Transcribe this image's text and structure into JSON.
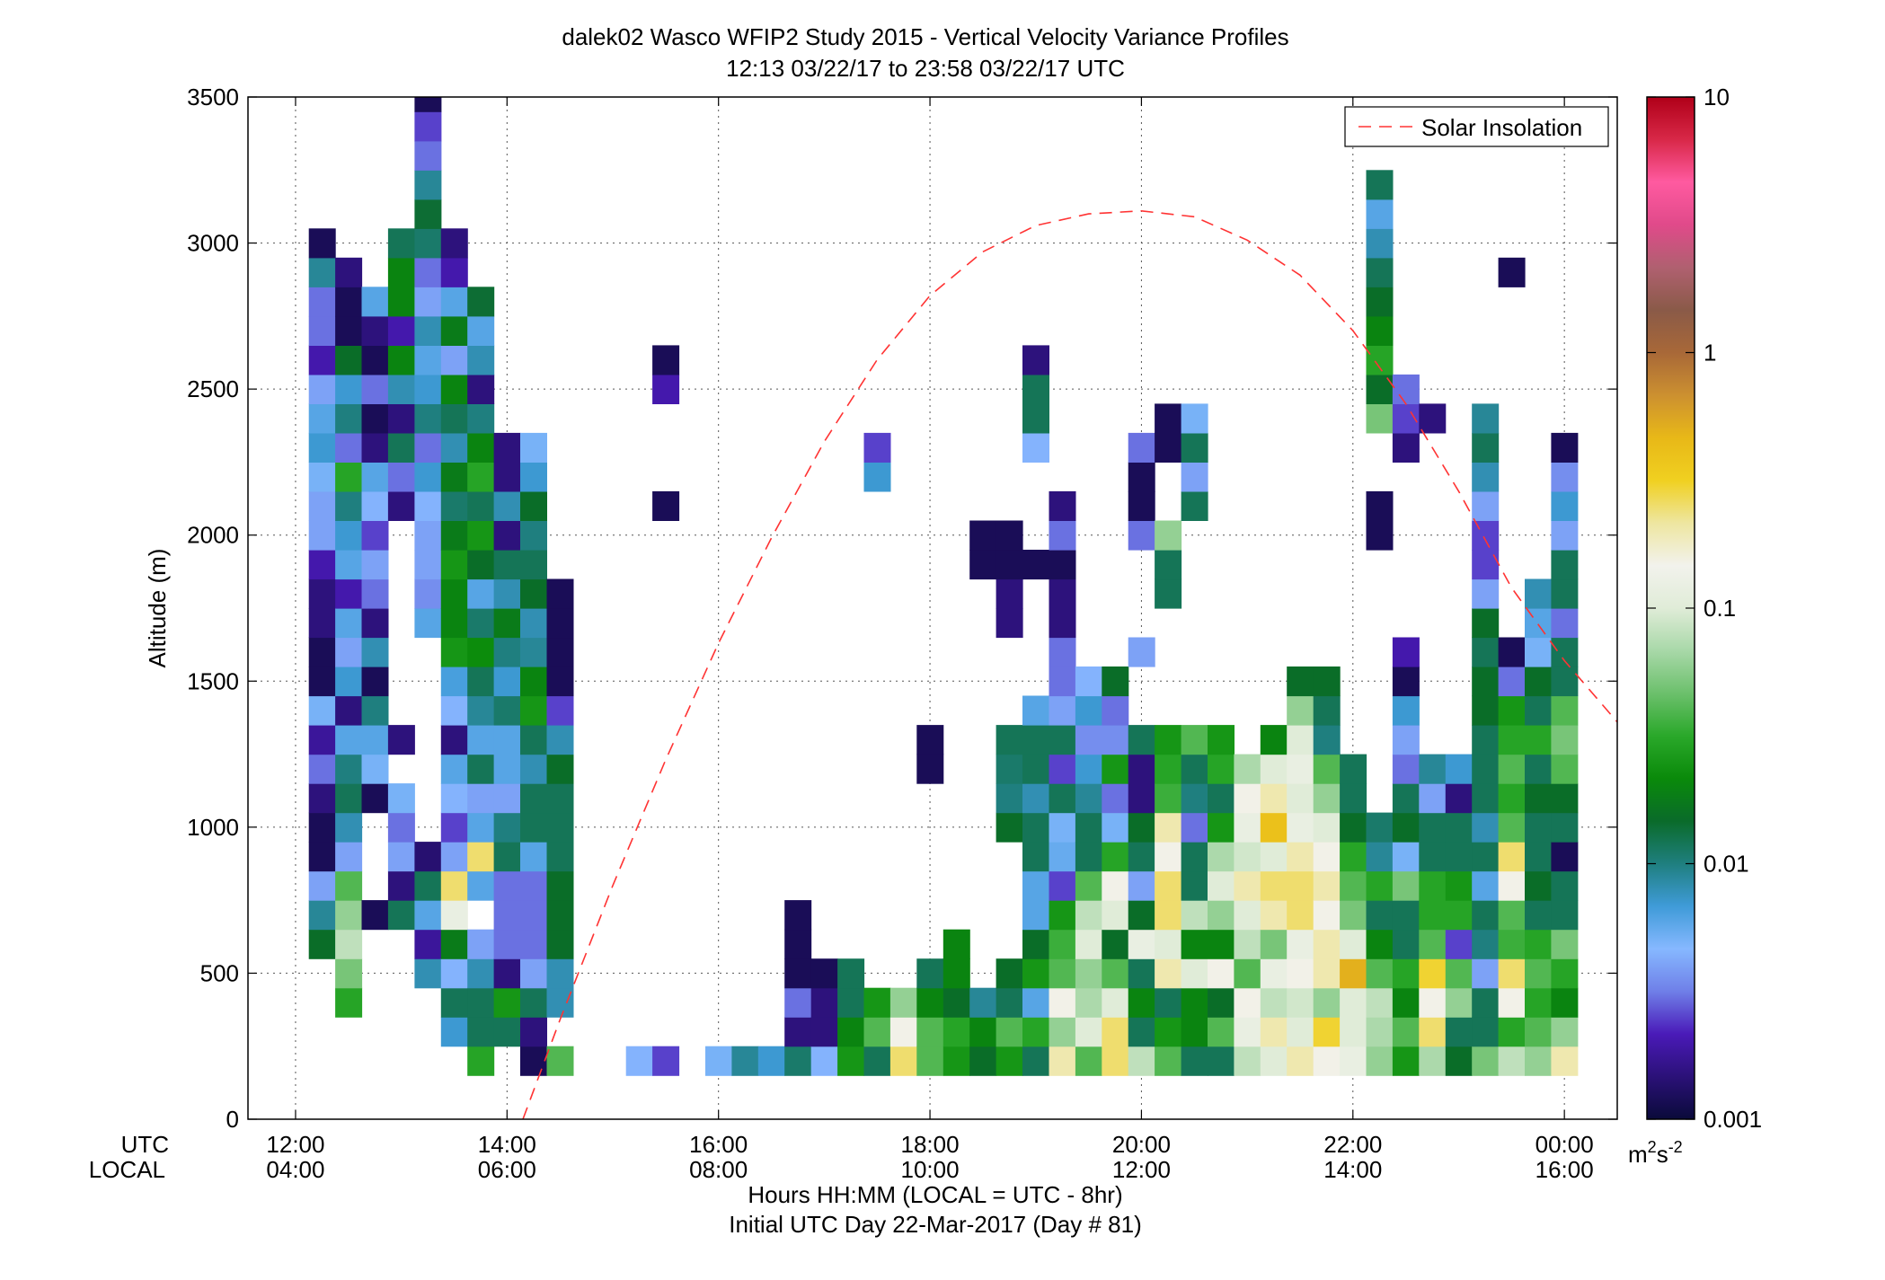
{
  "chart_data": {
    "type": "heatmap",
    "title": "dalek02 Wasco WFIP2 Study 2015 - Vertical Velocity Variance Profiles",
    "subtitle": "12:13 03/22/17 to 23:58 03/22/17  UTC",
    "ylabel": "Altitude (m)",
    "xlabel_lines": [
      "Hours HH:MM  (LOCAL = UTC - 8hr)",
      "Initial UTC Day 22-Mar-2017 (Day # 81)"
    ],
    "x_row_labels": [
      "UTC",
      "LOCAL"
    ],
    "x_ticks": [
      {
        "hour": 12,
        "utc": "12:00",
        "local": "04:00"
      },
      {
        "hour": 14,
        "utc": "14:00",
        "local": "06:00"
      },
      {
        "hour": 16,
        "utc": "16:00",
        "local": "08:00"
      },
      {
        "hour": 18,
        "utc": "18:00",
        "local": "10:00"
      },
      {
        "hour": 20,
        "utc": "20:00",
        "local": "12:00"
      },
      {
        "hour": 22,
        "utc": "22:00",
        "local": "14:00"
      },
      {
        "hour": 24,
        "utc": "00:00",
        "local": "16:00"
      }
    ],
    "y_ticks": [
      0,
      500,
      1000,
      1500,
      2000,
      2500,
      3000,
      3500
    ],
    "xlim_hours": [
      11.55,
      24.5
    ],
    "ylim": [
      0,
      3500
    ],
    "grid": true,
    "legend": {
      "label": "Solar Insolation",
      "position": "top-right",
      "line_color": "#ff3333",
      "line_style": "dashed"
    },
    "solar_insolation": {
      "hours": [
        14.15,
        14.5,
        15.0,
        15.5,
        16.0,
        16.5,
        17.0,
        17.5,
        18.0,
        18.5,
        19.0,
        19.5,
        20.0,
        20.5,
        21.0,
        21.5,
        22.0,
        22.5,
        23.0,
        23.5,
        24.0,
        24.5
      ],
      "altitude": [
        0,
        340,
        800,
        1230,
        1630,
        1990,
        2320,
        2600,
        2820,
        2970,
        3060,
        3100,
        3110,
        3090,
        3010,
        2890,
        2700,
        2450,
        2150,
        1820,
        1570,
        1360
      ]
    },
    "colorbar": {
      "unit": "m^2s^-2",
      "scale": "log",
      "range": [
        0.001,
        10
      ],
      "ticks": [
        {
          "value": 10,
          "label": "10"
        },
        {
          "value": 1,
          "label": "1"
        },
        {
          "value": 0.1,
          "label": "0.1"
        },
        {
          "value": 0.01,
          "label": "0.01"
        },
        {
          "value": 0.001,
          "label": "0.001"
        }
      ],
      "stops": [
        "#0a0a3a",
        "#2b1178",
        "#4a1ab8",
        "#6f7fe8",
        "#86b8ff",
        "#3f9bd8",
        "#1f7f7f",
        "#0a6b2a",
        "#0a8a0a",
        "#2aa82a",
        "#6cc06c",
        "#a8d8a8",
        "#e0ecd8",
        "#f2f2ec",
        "#eee6a0",
        "#f0d020",
        "#e8b818",
        "#cc9030",
        "#a86838",
        "#8a5a48",
        "#b06070",
        "#e04a8a",
        "#ff5aa0",
        "#d82848",
        "#b00018"
      ]
    },
    "cell_size": {
      "hours": 0.25,
      "meters": 100
    },
    "columns": [
      {
        "t": 12.25,
        "z0": 600,
        "v": [
          0.015,
          0.009,
          0.004,
          0.0012,
          0.0012,
          0.0015,
          0.003,
          0.0018,
          0.005,
          0.0012,
          0.0012,
          0.0015,
          0.0015,
          0.002,
          0.004,
          0.004,
          0.005,
          0.007,
          0.006,
          0.004,
          0.002,
          0.003,
          0.003,
          0.009,
          0.0012
        ]
      },
      {
        "t": 12.5,
        "z0": 400,
        "v": [
          0.03,
          0.05,
          0.08,
          0.06,
          0.04,
          0.004,
          0.008,
          0.012,
          0.01,
          0.006,
          0.0015,
          0.007,
          0.004,
          0.006,
          0.002,
          0.006,
          0.007,
          0.01,
          0.03,
          0.003,
          0.01,
          0.007,
          0.015,
          0.0012,
          0.0012,
          0.0015
        ]
      },
      {
        "t": 12.75,
        "z0": 700,
        "v": [
          0.0012,
          null,
          null,
          null,
          0.0012,
          0.005,
          0.006,
          0.01,
          0.0012,
          0.008,
          0.0015,
          0.003,
          0.004,
          0.0025,
          0.0045,
          0.006,
          0.0015,
          0.0012,
          0.003,
          0.0012,
          0.0015,
          0.006
        ]
      },
      {
        "t": 13.0,
        "z0": 700,
        "v": [
          0.012,
          0.0015,
          0.004,
          0.003,
          0.005,
          null,
          0.0015,
          null,
          null,
          null,
          null,
          null,
          null,
          null,
          0.0015,
          0.003,
          0.012,
          0.0015,
          0.008,
          0.02,
          0.002,
          0.02,
          0.02,
          0.012
        ]
      },
      {
        "t": 13.25,
        "z0": 500,
        "v": [
          0.008,
          0.0018,
          0.006,
          0.012,
          0.0014,
          null,
          null,
          null,
          null,
          null,
          null,
          null,
          0.006,
          0.0035,
          0.004,
          0.004,
          0.0045,
          0.007,
          0.003,
          0.01,
          0.007,
          0.006,
          0.008,
          0.004,
          0.003,
          0.011,
          0.014,
          0.009,
          0.003,
          0.0025,
          0.0012
        ]
      },
      {
        "t": 13.5,
        "z0": 300,
        "v": [
          0.007,
          0.012,
          0.0045,
          0.018,
          0.12,
          0.25,
          0.004,
          0.0025,
          0.0045,
          0.006,
          0.0015,
          0.0045,
          0.0065,
          0.025,
          0.02,
          0.02,
          0.025,
          0.018,
          0.011,
          0.018,
          0.008,
          0.012,
          0.02,
          0.004,
          0.018,
          0.006,
          0.002,
          0.0015
        ]
      },
      {
        "t": 13.75,
        "z0": 200,
        "v": [
          0.03,
          0.012,
          0.012,
          0.008,
          0.004,
          null,
          0.006,
          0.25,
          0.006,
          0.004,
          0.012,
          0.006,
          0.009,
          0.012,
          0.022,
          0.011,
          0.006,
          0.015,
          0.025,
          0.012,
          0.03,
          0.02,
          0.01,
          0.0015,
          0.008,
          0.006,
          0.014
        ]
      },
      {
        "t": 14.0,
        "z0": 300,
        "v": [
          0.012,
          0.025,
          0.0015,
          0.003,
          0.003,
          0.003,
          0.012,
          0.01,
          0.004,
          0.006,
          0.006,
          0.011,
          0.007,
          0.01,
          0.018,
          0.008,
          0.012,
          0.0015,
          0.008,
          0.0015,
          0.0015
        ]
      },
      {
        "t": 14.25,
        "z0": 200,
        "v": [
          0.0012,
          0.0015,
          0.012,
          0.004,
          0.003,
          0.003,
          0.003,
          0.006,
          0.012,
          0.012,
          0.008,
          0.012,
          0.025,
          0.02,
          0.009,
          0.008,
          0.015,
          0.012,
          0.01,
          0.015,
          0.007,
          0.005
        ]
      },
      {
        "t": 14.5,
        "z0": 200,
        "v": [
          0.04,
          null,
          0.008,
          0.008,
          0.015,
          0.015,
          0.015,
          0.012,
          0.012,
          0.012,
          0.015,
          0.008,
          0.0025,
          0.0012,
          0.0012,
          0.0012,
          0.0012
        ]
      },
      {
        "t": 15.25,
        "z0": 200,
        "v": [
          0.0045
        ]
      },
      {
        "t": 15.5,
        "z0": 200,
        "v": [
          0.0025,
          null,
          null,
          null,
          null,
          null,
          null,
          null,
          null,
          null,
          null,
          null,
          null,
          null,
          null,
          null,
          null,
          null,
          null,
          0.0012,
          null,
          null,
          null,
          0.002,
          0.0012
        ]
      },
      {
        "t": 16.0,
        "z0": 200,
        "v": [
          0.005
        ]
      },
      {
        "t": 16.25,
        "z0": 200,
        "v": [
          0.009
        ]
      },
      {
        "t": 16.5,
        "z0": 200,
        "v": [
          0.007
        ]
      },
      {
        "t": 16.75,
        "z0": 200,
        "v": [
          0.011,
          0.0015,
          0.003,
          0.0012,
          0.0012,
          0.0012
        ]
      },
      {
        "t": 17.0,
        "z0": 200,
        "v": [
          0.0045,
          0.0015,
          0.0015,
          0.0012
        ]
      },
      {
        "t": 17.25,
        "z0": 200,
        "v": [
          0.025,
          0.02,
          0.012,
          0.012
        ]
      },
      {
        "t": 17.5,
        "z0": 200,
        "v": [
          0.012,
          0.04,
          0.025,
          null,
          null,
          null,
          null,
          null,
          null,
          null,
          null,
          null,
          null,
          null,
          null,
          null,
          null,
          null,
          null,
          null,
          0.007,
          0.0025
        ]
      },
      {
        "t": 17.75,
        "z0": 200,
        "v": [
          0.25,
          0.15,
          0.06
        ]
      },
      {
        "t": 18.0,
        "z0": 200,
        "v": [
          0.04,
          0.04,
          0.02,
          0.012,
          null,
          null,
          null,
          null,
          null,
          null,
          0.0012,
          0.0012
        ]
      },
      {
        "t": 18.25,
        "z0": 200,
        "v": [
          0.025,
          0.03,
          0.015,
          0.02,
          0.02
        ]
      },
      {
        "t": 18.5,
        "z0": 200,
        "v": [
          0.015,
          0.02,
          0.009,
          null,
          null,
          null,
          null,
          null,
          null,
          null,
          null,
          null,
          null,
          null,
          null,
          null,
          null,
          0.0012,
          0.0012
        ]
      },
      {
        "t": 18.75,
        "z0": 200,
        "v": [
          0.025,
          0.04,
          0.012,
          0.015,
          null,
          null,
          null,
          null,
          0.015,
          0.01,
          0.011,
          0.012,
          null,
          null,
          null,
          0.0015,
          0.0015,
          0.0012,
          0.0012
        ]
      },
      {
        "t": 19.0,
        "z0": 200,
        "v": [
          0.012,
          0.03,
          0.006,
          0.025,
          0.015,
          0.006,
          0.006,
          0.012,
          0.012,
          0.008,
          0.012,
          0.012,
          0.006,
          null,
          null,
          null,
          null,
          0.0012,
          null,
          null,
          null,
          0.0045,
          0.012,
          0.012,
          0.0015
        ]
      },
      {
        "t": 19.25,
        "z0": 200,
        "v": [
          0.2,
          0.06,
          0.15,
          0.04,
          0.035,
          0.025,
          0.0025,
          0.0055,
          0.005,
          0.012,
          0.0025,
          0.012,
          0.004,
          0.003,
          0.003,
          0.0015,
          0.0015,
          0.0012,
          0.003,
          0.0015
        ]
      },
      {
        "t": 19.5,
        "z0": 200,
        "v": [
          0.04,
          0.1,
          0.07,
          0.06,
          0.1,
          0.08,
          0.04,
          0.012,
          0.012,
          0.009,
          0.007,
          0.0035,
          0.007,
          0.0045
        ]
      },
      {
        "t": 19.75,
        "z0": 200,
        "v": [
          0.25,
          0.25,
          0.1,
          0.04,
          0.015,
          0.1,
          0.15,
          0.03,
          0.005,
          0.003,
          0.025,
          0.0035,
          0.003,
          0.015
        ]
      },
      {
        "t": 20.0,
        "z0": 200,
        "v": [
          0.08,
          0.012,
          0.02,
          0.012,
          0.12,
          0.015,
          0.004,
          0.012,
          0.015,
          0.0015,
          0.0015,
          0.012,
          null,
          null,
          0.004,
          null,
          null,
          null,
          0.003,
          0.0012,
          0.0012,
          0.003
        ]
      },
      {
        "t": 20.25,
        "z0": 200,
        "v": [
          0.04,
          0.025,
          0.012,
          0.2,
          0.1,
          0.25,
          0.25,
          0.15,
          0.2,
          0.035,
          0.03,
          0.025,
          null,
          null,
          null,
          null,
          0.012,
          0.012,
          0.06,
          null,
          null,
          0.0012,
          0.0012
        ]
      },
      {
        "t": 20.5,
        "z0": 200,
        "v": [
          0.012,
          0.02,
          0.02,
          0.1,
          0.02,
          0.08,
          0.012,
          0.012,
          0.003,
          0.01,
          0.012,
          0.04,
          null,
          null,
          null,
          null,
          null,
          null,
          null,
          0.012,
          0.004,
          0.012,
          0.005
        ]
      },
      {
        "t": 20.75,
        "z0": 200,
        "v": [
          0.012,
          0.04,
          0.015,
          0.15,
          0.02,
          0.06,
          0.1,
          0.07,
          0.025,
          0.012,
          0.03,
          0.025
        ]
      },
      {
        "t": 21.0,
        "z0": 200,
        "v": [
          0.08,
          0.12,
          0.15,
          0.04,
          0.08,
          0.1,
          0.2,
          0.09,
          0.12,
          0.15,
          0.07
        ]
      },
      {
        "t": 21.25,
        "z0": 200,
        "v": [
          0.1,
          0.2,
          0.08,
          0.12,
          0.05,
          0.2,
          0.25,
          0.1,
          0.4,
          0.2,
          0.1,
          0.02
        ]
      },
      {
        "t": 21.5,
        "z0": 200,
        "v": [
          0.2,
          0.1,
          0.09,
          0.15,
          0.12,
          0.25,
          0.25,
          0.2,
          0.12,
          0.1,
          0.12,
          0.1,
          0.06,
          0.015
        ]
      },
      {
        "t": 21.75,
        "z0": 200,
        "v": [
          0.15,
          0.3,
          0.06,
          0.2,
          0.2,
          0.15,
          0.2,
          0.15,
          0.1,
          0.06,
          0.04,
          0.01,
          0.012,
          0.015
        ]
      },
      {
        "t": 22.0,
        "z0": 200,
        "v": [
          0.12,
          0.1,
          0.1,
          0.5,
          0.1,
          0.05,
          0.04,
          0.03,
          0.015,
          0.012,
          0.012
        ]
      },
      {
        "t": 22.25,
        "z0": 200,
        "v": [
          0.06,
          0.07,
          0.08,
          0.04,
          0.02,
          0.012,
          0.03,
          0.009,
          0.011,
          null,
          null,
          null,
          null,
          null,
          null,
          null,
          null,
          null,
          0.0012,
          0.0012,
          null,
          null,
          0.05,
          0.015,
          0.03,
          0.02,
          0.015,
          0.012,
          0.008,
          0.006,
          0.012
        ]
      },
      {
        "t": 22.5,
        "z0": 200,
        "v": [
          0.025,
          0.04,
          0.02,
          0.03,
          0.012,
          0.012,
          0.05,
          0.005,
          0.015,
          0.012,
          0.003,
          0.004,
          0.007,
          0.0012,
          0.002,
          null,
          null,
          null,
          null,
          null,
          null,
          0.0015,
          0.0025,
          0.003
        ]
      },
      {
        "t": 22.75,
        "z0": 200,
        "v": [
          0.07,
          0.25,
          0.15,
          0.3,
          0.04,
          0.03,
          0.03,
          0.012,
          0.012,
          0.004,
          0.009,
          null,
          null,
          null,
          null,
          null,
          null,
          null,
          null,
          null,
          null,
          null,
          0.0015
        ]
      },
      {
        "t": 23.0,
        "z0": 200,
        "v": [
          0.015,
          0.012,
          0.06,
          0.04,
          0.0025,
          0.03,
          0.025,
          0.012,
          0.012,
          0.0015,
          0.007
        ]
      },
      {
        "t": 23.25,
        "z0": 200,
        "v": [
          0.05,
          0.012,
          0.012,
          0.004,
          0.01,
          0.012,
          0.006,
          0.012,
          0.008,
          0.012,
          0.012,
          0.012,
          0.015,
          0.015,
          0.012,
          0.015,
          0.004,
          0.0025,
          0.0025,
          0.004,
          0.008,
          0.012,
          0.009
        ]
      },
      {
        "t": 23.5,
        "z0": 200,
        "v": [
          0.08,
          0.03,
          0.15,
          0.25,
          0.035,
          0.04,
          0.15,
          0.25,
          0.04,
          0.03,
          0.04,
          0.03,
          0.025,
          0.003,
          0.0012,
          null,
          null,
          null,
          null,
          null,
          null,
          null,
          null,
          null,
          null,
          null,
          null,
          0.0012
        ]
      },
      {
        "t": 23.75,
        "z0": 200,
        "v": [
          0.06,
          0.04,
          0.03,
          0.04,
          0.03,
          0.012,
          0.015,
          0.012,
          0.012,
          0.015,
          0.012,
          0.03,
          0.012,
          0.015,
          0.005,
          0.006,
          0.008
        ]
      },
      {
        "t": 24.0,
        "z0": 200,
        "v": [
          0.2,
          0.06,
          0.02,
          0.03,
          0.05,
          0.012,
          0.012,
          0.0012,
          0.012,
          0.015,
          0.04,
          0.05,
          0.04,
          0.012,
          0.012,
          0.003,
          0.012,
          0.012,
          0.004,
          0.007,
          0.0035,
          0.0012
        ]
      }
    ]
  }
}
